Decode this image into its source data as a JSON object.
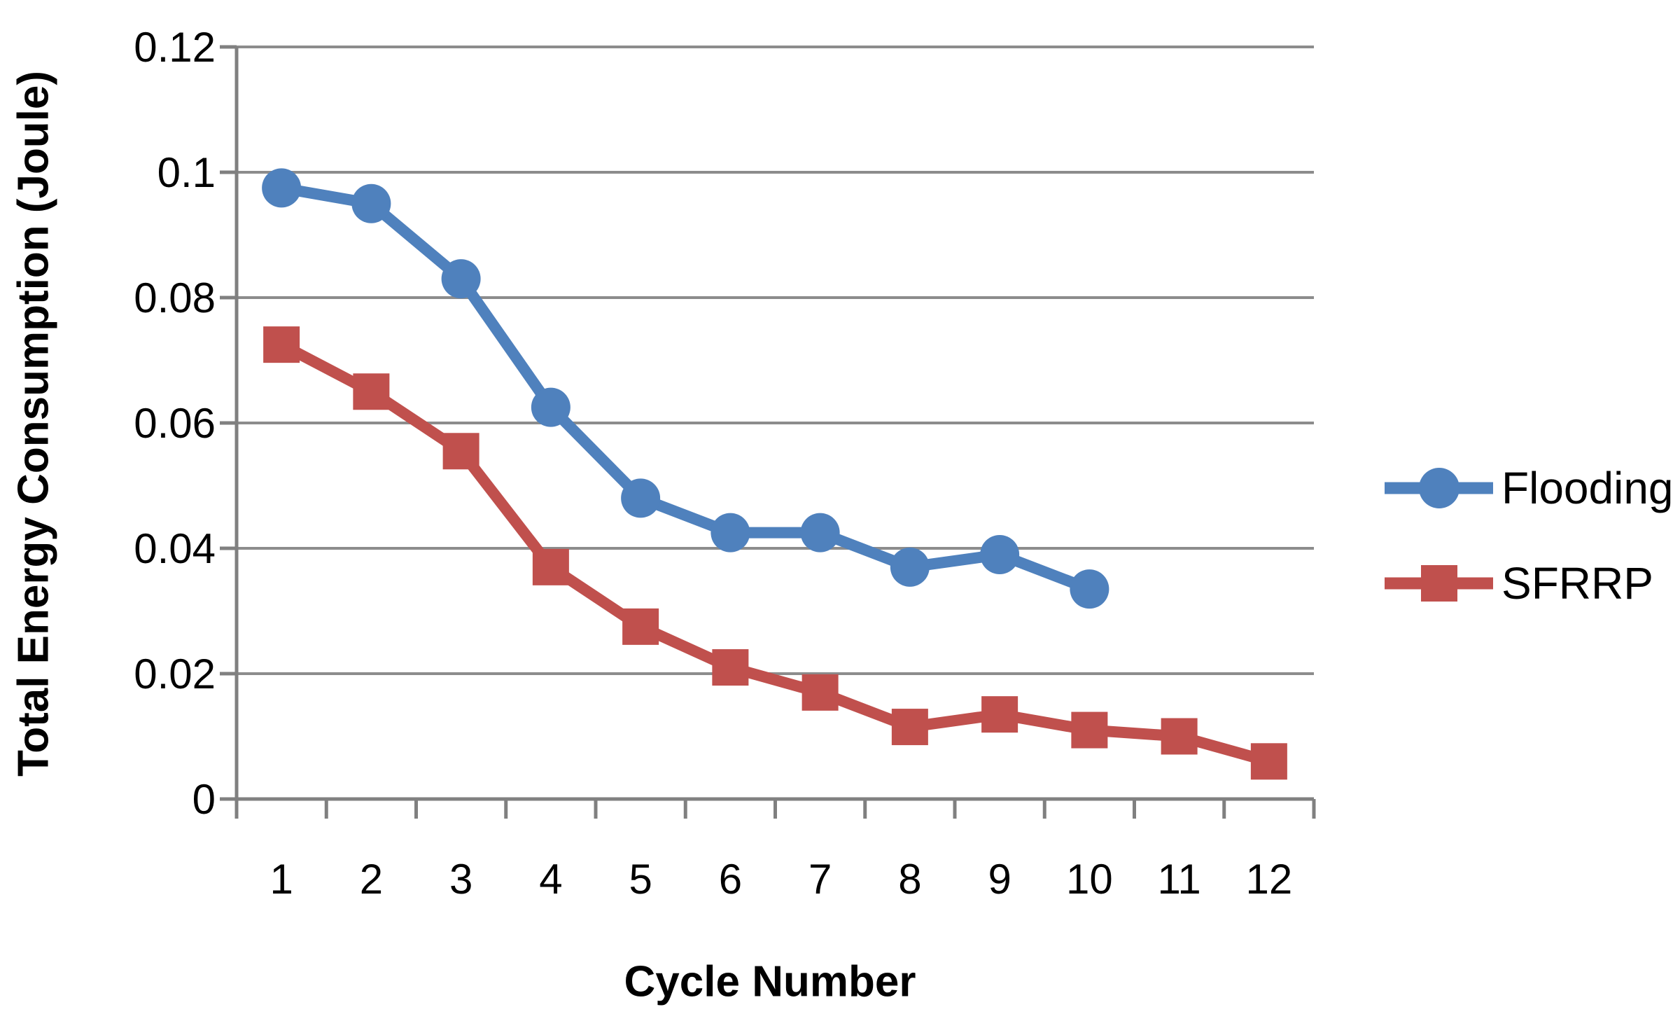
{
  "page": {
    "background": "#FFFFFF"
  },
  "chart_data": {
    "type": "line",
    "title": "",
    "xlabel": "Cycle Number",
    "ylabel": "Total Energy Consumption (Joule)",
    "categories": [
      "1",
      "2",
      "3",
      "4",
      "5",
      "6",
      "7",
      "8",
      "9",
      "10",
      "11",
      "12"
    ],
    "ylim": [
      0,
      0.12
    ],
    "y_ticks": [
      {
        "value": 0,
        "label": "0"
      },
      {
        "value": 0.02,
        "label": "0.02"
      },
      {
        "value": 0.04,
        "label": "0.04"
      },
      {
        "value": 0.06,
        "label": "0.06"
      },
      {
        "value": 0.08,
        "label": "0.08"
      },
      {
        "value": 0.1,
        "label": "0.1"
      },
      {
        "value": 0.12,
        "label": "0.12"
      }
    ],
    "grid": true,
    "legend_position": "right-middle",
    "series": [
      {
        "name": "Flooding",
        "marker": "circle",
        "color": "#4F81BD",
        "values": [
          0.0975,
          0.095,
          0.083,
          0.0625,
          0.048,
          0.0425,
          0.0425,
          0.037,
          0.039,
          0.0335
        ]
      },
      {
        "name": "SFRRP",
        "marker": "square",
        "color": "#C0504D",
        "values": [
          0.0725,
          0.065,
          0.0555,
          0.037,
          0.0275,
          0.021,
          0.017,
          0.0115,
          0.0135,
          0.011,
          0.01,
          0.006
        ]
      }
    ],
    "style": {
      "grid_color": "#8C8C8C",
      "axis_color": "#808080",
      "text_color": "#000000"
    }
  }
}
